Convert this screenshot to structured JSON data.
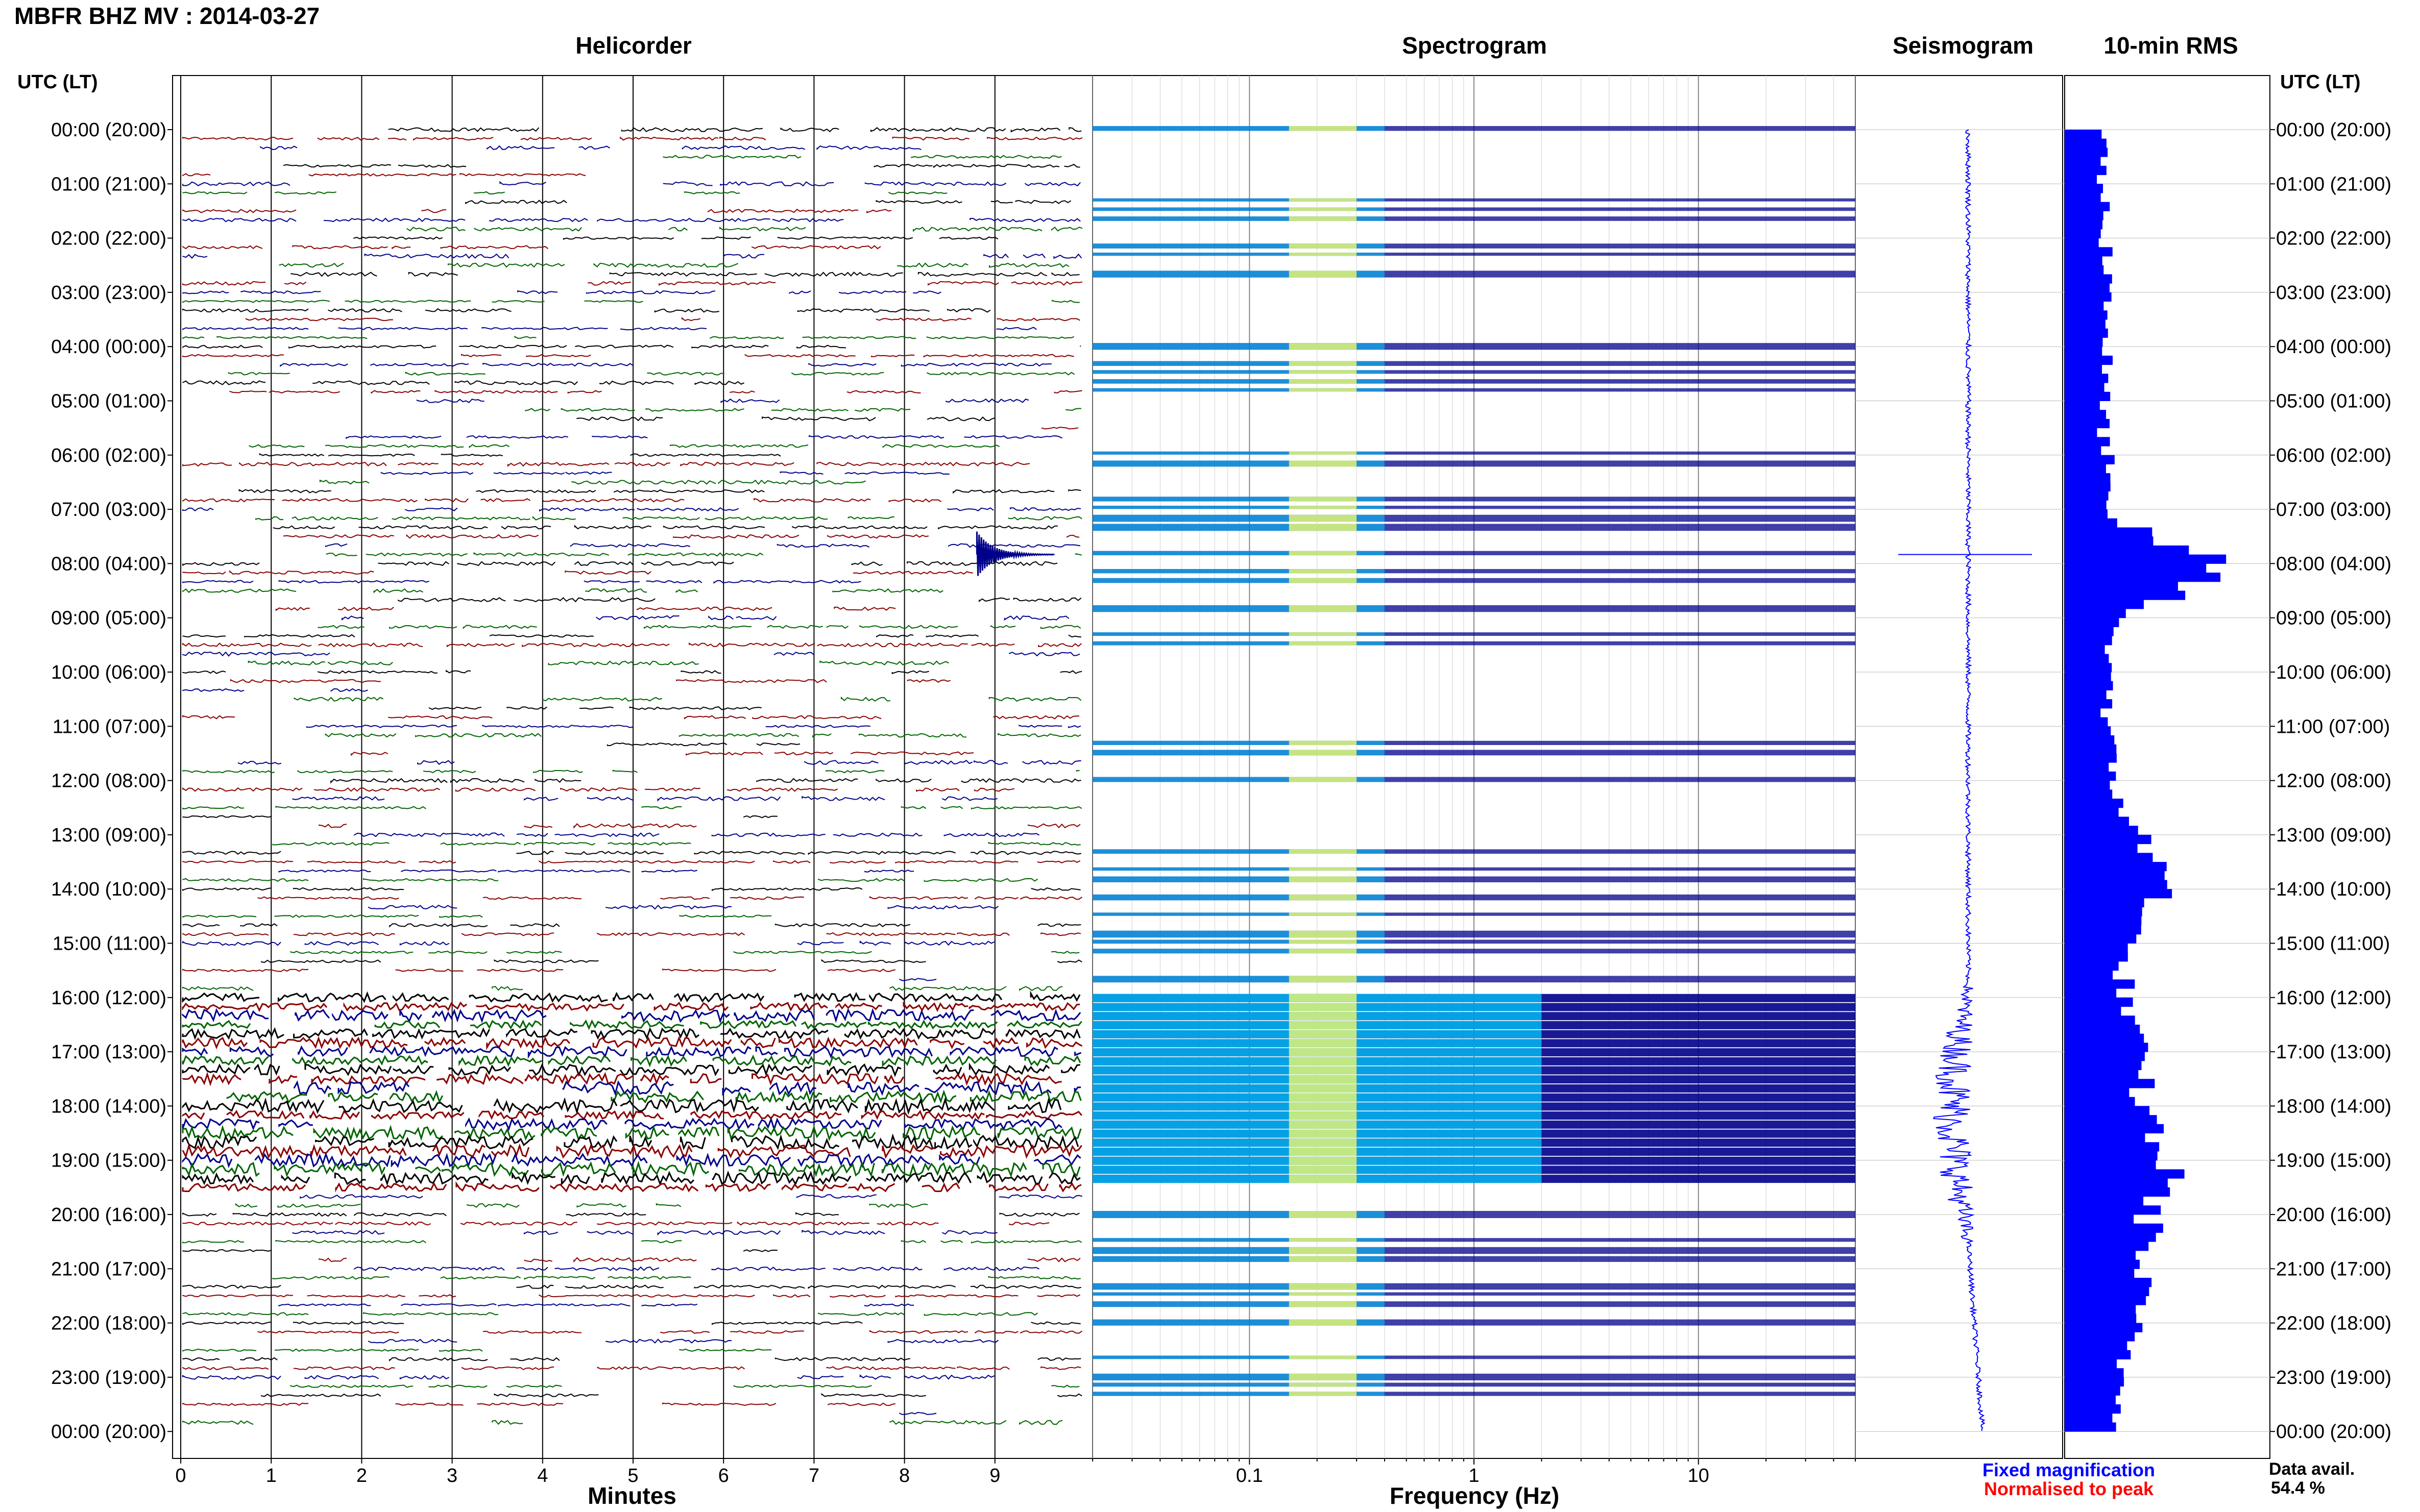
{
  "header": {
    "title": "MBFR BHZ MV : 2014-03-27"
  },
  "panels": {
    "helicorder": "Helicorder",
    "spectrogram": "Spectrogram",
    "seismogram": "Seismogram",
    "rms": "10-min RMS"
  },
  "axis": {
    "left_header": "UTC (LT)",
    "right_header": "UTC (LT)",
    "minutes_label": "Minutes",
    "frequency_label": "Frequency (Hz)"
  },
  "legend": {
    "fixed": "Fixed magnification",
    "normalised": "Normalised to peak",
    "fixed_color": "#0000ff",
    "normalised_color": "#ff0000"
  },
  "data_availability": {
    "label": "Data avail.",
    "value": "54.4 %"
  },
  "colors": {
    "trace_black": "#000000",
    "trace_red": "#8b0000",
    "trace_blue": "#00008b",
    "trace_green": "#006400",
    "rms_bar": "#0000ff",
    "spectro_low": "#00008b",
    "spectro_mid": "#00cfff",
    "spectro_high": "#ffff66"
  },
  "chart_data": [
    {
      "type": "line",
      "title": "Helicorder",
      "xlabel": "Minutes",
      "x_ticks": [
        "0",
        "1",
        "2",
        "3",
        "4",
        "5",
        "6",
        "7",
        "8",
        "9"
      ],
      "xlim": [
        0,
        10
      ],
      "y_tick_labels": [
        "00:00 (20:00)",
        "01:00 (21:00)",
        "02:00 (22:00)",
        "03:00 (23:00)",
        "04:00 (00:00)",
        "05:00 (01:00)",
        "06:00 (02:00)",
        "07:00 (03:00)",
        "08:00 (04:00)",
        "09:00 (05:00)",
        "10:00 (06:00)",
        "11:00 (07:00)",
        "12:00 (08:00)",
        "13:00 (09:00)",
        "14:00 (10:00)",
        "15:00 (11:00)",
        "16:00 (12:00)",
        "17:00 (13:00)",
        "18:00 (14:00)",
        "19:00 (15:00)",
        "20:00 (16:00)",
        "21:00 (17:00)",
        "22:00 (18:00)",
        "23:00 (19:00)",
        "00:00 (20:00)"
      ],
      "rows": 144,
      "row_minutes": 10,
      "data_availability_percent": 54.4,
      "notable_event": {
        "time_utc": "07:50",
        "minute": 8.8
      }
    },
    {
      "type": "heatmap",
      "title": "Spectrogram",
      "xlabel": "Frequency (Hz)",
      "x_scale": "log",
      "x_ticks": [
        0.1,
        1,
        10
      ],
      "xlim": [
        0.02,
        50
      ],
      "high_energy_band_hz": [
        0.15,
        0.3
      ],
      "strong_activity_utc": [
        "16:00",
        "19:20"
      ]
    },
    {
      "type": "line",
      "title": "Seismogram",
      "description_axis": "time (UTC) vertical",
      "event_utc": "07:50",
      "increased_amplitude_utc": [
        "16:00",
        "20:30"
      ]
    },
    {
      "type": "bar",
      "title": "10-min RMS",
      "orientation": "horizontal",
      "categories_per_hour": 6,
      "relative_values_hourly": [
        0.2,
        0.2,
        0.22,
        0.24,
        0.22,
        0.2,
        0.22,
        0.2,
        0.85,
        0.25,
        0.25,
        0.22,
        0.26,
        0.4,
        0.55,
        0.3,
        0.32,
        0.38,
        0.42,
        0.55,
        0.45,
        0.4,
        0.35,
        0.3,
        0.3
      ],
      "peak_relative_value": 0.85,
      "peak_time_utc": "07:50"
    }
  ]
}
